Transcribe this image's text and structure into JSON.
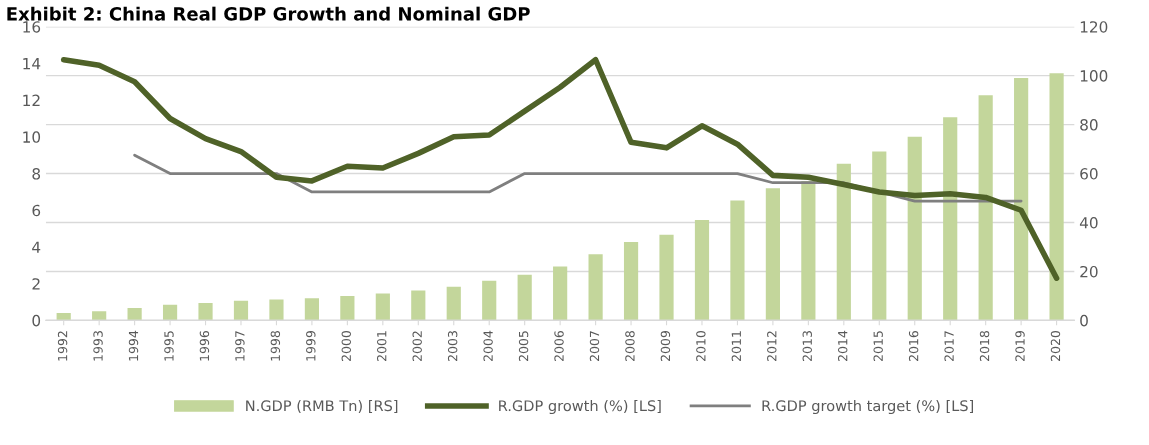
{
  "chart_data": {
    "type": "bar",
    "title": "Exhibit 2: China Real GDP Growth and Nominal GDP",
    "categories": [
      "1992",
      "1993",
      "1994",
      "1995",
      "1996",
      "1997",
      "1998",
      "1999",
      "2000",
      "2001",
      "2002",
      "2003",
      "2004",
      "2005",
      "2006",
      "2007",
      "2008",
      "2009",
      "2010",
      "2011",
      "2012",
      "2013",
      "2014",
      "2015",
      "2016",
      "2017",
      "2018",
      "2019",
      "2020"
    ],
    "series": [
      {
        "name": "N.GDP (RMB Tn) [RS]",
        "axis": "y2",
        "color": "#c3d69b",
        "values": [
          3.0,
          3.7,
          5.1,
          6.4,
          7.1,
          8.0,
          8.5,
          9.0,
          10.0,
          11.0,
          12.2,
          13.7,
          16.2,
          18.7,
          22,
          27,
          32,
          35,
          41,
          49,
          54,
          57,
          64,
          69,
          75,
          83,
          92,
          99,
          101
        ]
      },
      {
        "name": "R.GDP growth (%) [LS]",
        "type": "line",
        "color": "#4f6228",
        "values": [
          14.2,
          13.9,
          13.0,
          11.0,
          9.9,
          9.2,
          7.8,
          7.6,
          8.4,
          8.3,
          9.1,
          10.0,
          10.1,
          11.4,
          12.7,
          14.2,
          9.7,
          9.4,
          10.6,
          9.6,
          7.9,
          7.8,
          7.4,
          7.0,
          6.8,
          6.9,
          6.7,
          6.0,
          2.3
        ]
      },
      {
        "name": "R.GDP growth target (%) [LS]",
        "type": "line",
        "color": "#7f7f7f",
        "values": [
          null,
          null,
          9,
          8,
          8,
          8,
          8,
          7,
          7,
          7,
          7,
          7,
          7,
          8,
          8,
          8,
          8,
          8,
          8,
          8,
          7.5,
          7.5,
          7.5,
          7,
          6.5,
          6.5,
          6.5,
          6.5,
          null
        ]
      }
    ],
    "ylim": [
      0,
      16
    ],
    "yticks": [
      0,
      2,
      4,
      6,
      8,
      10,
      12,
      14,
      16
    ],
    "y2lim": [
      0,
      120
    ],
    "y2ticks": [
      0,
      20,
      40,
      60,
      80,
      100,
      120
    ],
    "grid": "y",
    "legend": "bottom"
  }
}
